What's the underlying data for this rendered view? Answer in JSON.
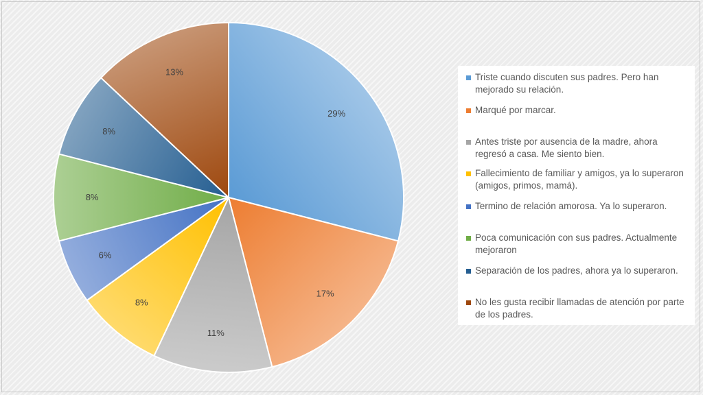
{
  "chart_data": {
    "type": "pie",
    "categories": [
      "Triste cuando discuten sus padres. Pero han mejorado su relación.",
      "Marqué por marcar.",
      "Antes triste por ausencia de la madre, ahora regresó a casa. Me siento bien.",
      "Fallecimiento de familiar y amigos, ya lo superaron (amigos, primos, mamá).",
      "Termino de relación amorosa. Ya lo superaron.",
      "Poca comunicación con sus padres. Actualmente mejoraron",
      "Separación de los padres, ahora ya lo superaron.",
      "No les gusta recibir llamadas de atención por parte de los padres."
    ],
    "values": [
      29,
      17,
      11,
      8,
      6,
      8,
      8,
      13
    ],
    "data_labels": [
      "29%",
      "17%",
      "11%",
      "8%",
      "6%",
      "8%",
      "8%",
      "13%"
    ],
    "colors": [
      "#5b9bd5",
      "#ed7d31",
      "#a5a5a5",
      "#ffc000",
      "#4472c4",
      "#70ad47",
      "#255e91",
      "#9e480e"
    ],
    "legend_position": "right",
    "title": ""
  }
}
